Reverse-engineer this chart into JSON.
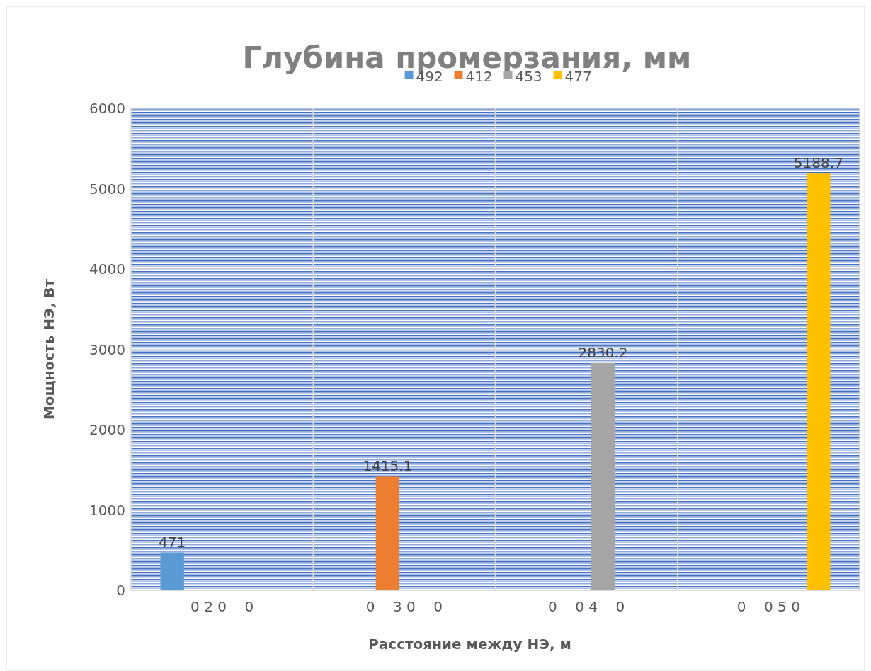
{
  "chart_data": {
    "type": "bar",
    "title": "Глубина промерзания, мм",
    "xlabel": "Расстояние между НЭ, м",
    "ylabel": "Мощность НЭ, Вт",
    "categories": [
      "0 2 0    0",
      "0    3 0    0",
      "0    0 4    0",
      "0    0 5 0"
    ],
    "series": [
      {
        "name": "492",
        "color": "#5b9bd5",
        "values": [
          471,
          0,
          0,
          0
        ],
        "value_labels": [
          "471",
          null,
          null,
          null
        ]
      },
      {
        "name": "412",
        "color": "#ed7d31",
        "values": [
          0,
          1415.1,
          0,
          0
        ],
        "value_labels": [
          null,
          "1415.1",
          null,
          null
        ]
      },
      {
        "name": "453",
        "color": "#a5a5a5",
        "values": [
          0,
          0,
          2830.2,
          0
        ],
        "value_labels": [
          null,
          null,
          "2830.2",
          null
        ]
      },
      {
        "name": "477",
        "color": "#ffc000",
        "values": [
          0,
          0,
          0,
          5188.7
        ],
        "value_labels": [
          null,
          null,
          null,
          "5188.7"
        ]
      }
    ],
    "ylim": [
      0,
      6000
    ],
    "yticks": [
      0,
      1000,
      2000,
      3000,
      4000,
      5000,
      6000
    ],
    "grid": "y",
    "legend": "top"
  }
}
